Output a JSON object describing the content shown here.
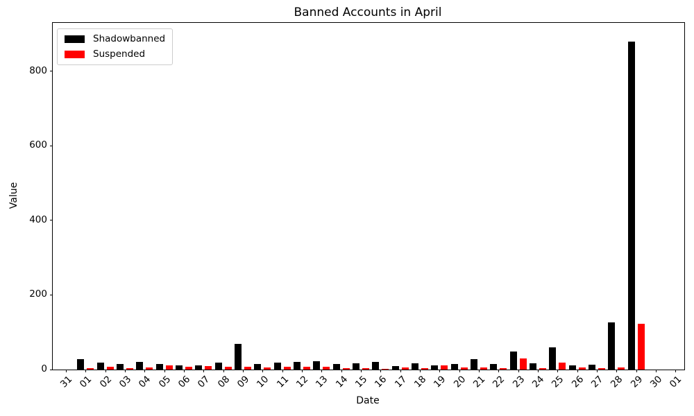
{
  "chart_data": {
    "type": "bar",
    "title": "Banned Accounts in April",
    "xlabel": "Date",
    "ylabel": "Value",
    "categories": [
      "31",
      "01",
      "02",
      "03",
      "04",
      "05",
      "06",
      "07",
      "08",
      "09",
      "10",
      "11",
      "12",
      "13",
      "14",
      "15",
      "16",
      "17",
      "18",
      "19",
      "20",
      "21",
      "22",
      "23",
      "24",
      "25",
      "26",
      "27",
      "28",
      "29",
      "30",
      "01"
    ],
    "series": [
      {
        "name": "Shadowbanned",
        "color": "#000000",
        "values": [
          0,
          27,
          19,
          14,
          20,
          15,
          12,
          12,
          19,
          69,
          15,
          18,
          20,
          22,
          14,
          17,
          20,
          10,
          17,
          11,
          14,
          28,
          15,
          48,
          17,
          59,
          11,
          13,
          127,
          880,
          0,
          0
        ]
      },
      {
        "name": "Suspended",
        "color": "#ff0000",
        "values": [
          0,
          4,
          8,
          4,
          5,
          12,
          8,
          10,
          7,
          8,
          5,
          8,
          7,
          8,
          4,
          3,
          2,
          6,
          4,
          12,
          5,
          5,
          4,
          29,
          4,
          19,
          5,
          3,
          5,
          122,
          0,
          0
        ]
      }
    ],
    "yticks": [
      0,
      200,
      400,
      600,
      800
    ],
    "ylim": [
      0,
      930
    ],
    "grid": false,
    "legend_position": "upper left",
    "x_tick_rotation": 45,
    "background_color": "#ffffff",
    "text_color": "#000000"
  }
}
